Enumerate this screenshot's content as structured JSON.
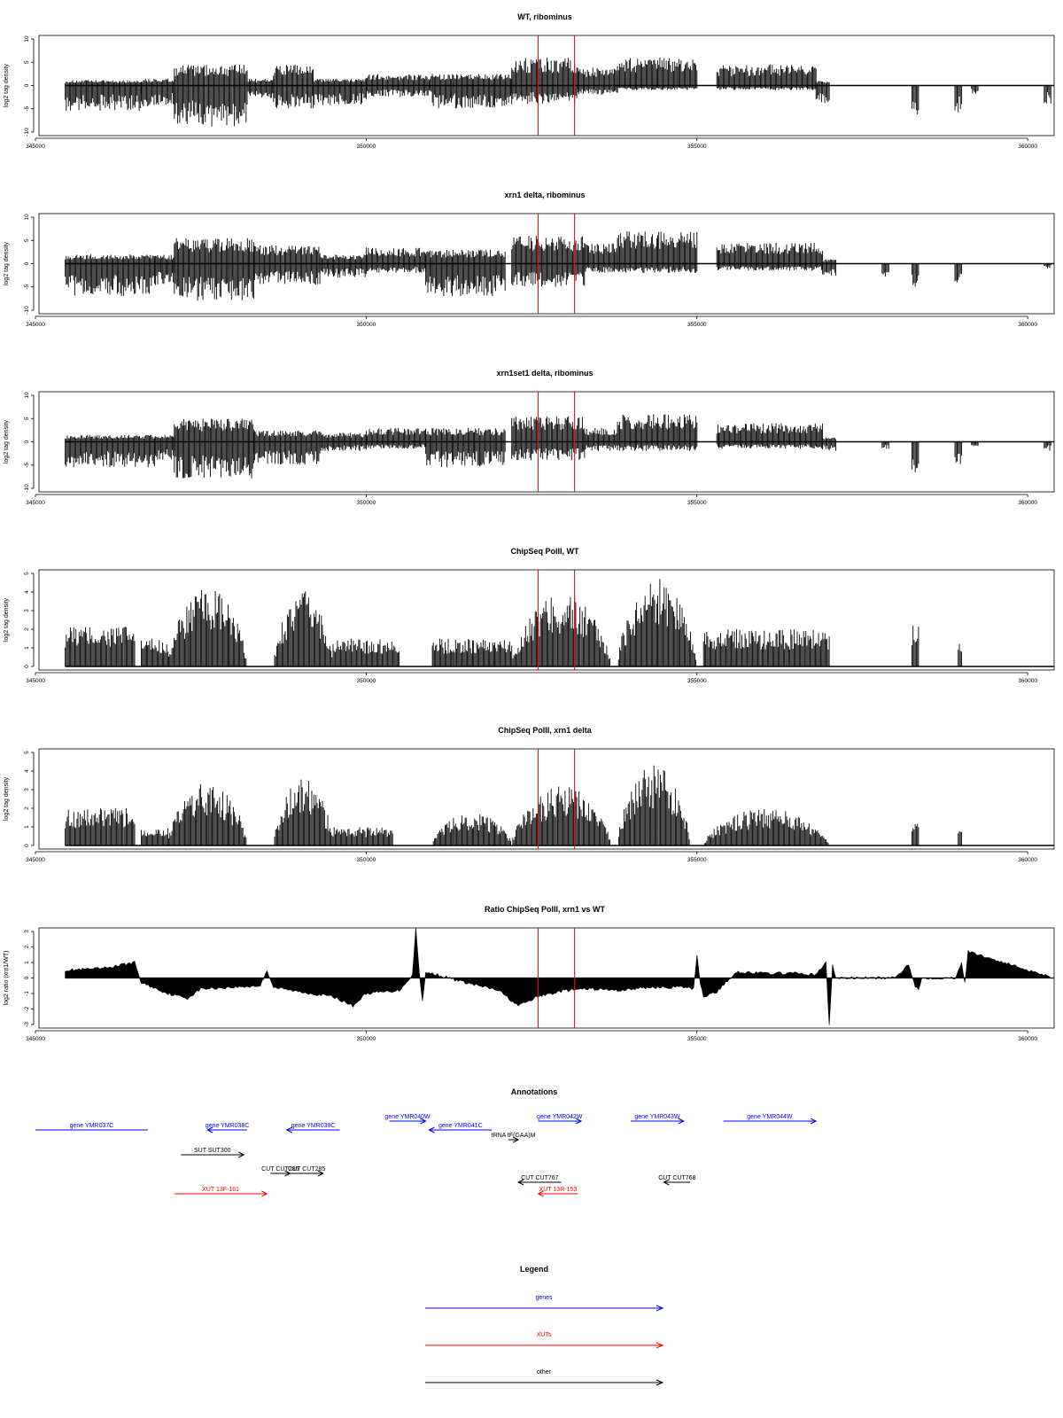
{
  "colors": {
    "bars": "#000000",
    "marker": "#ff0000",
    "gene": "#0000ff",
    "xut": "#ff0000",
    "other": "#000000"
  },
  "chart_data": [
    {
      "type": "bar",
      "title": "WT, ribominus",
      "ylabel": "log2 tag density",
      "ylim": [
        -10,
        10
      ],
      "yticks": [
        10,
        5,
        0,
        -5,
        -10
      ],
      "xlim": [
        345000,
        360400
      ],
      "xticks": [
        345000,
        350000,
        355000,
        360000
      ],
      "markers": [
        352600,
        353150
      ],
      "segments": [
        {
          "x": [
            345450,
            346600
          ],
          "pos": 1.2,
          "neg": -5.5
        },
        {
          "x": [
            346600,
            347100
          ],
          "pos": 1.5,
          "neg": -4.5
        },
        {
          "x": [
            347100,
            348200
          ],
          "pos": 4.5,
          "neg": -9
        },
        {
          "x": [
            348200,
            348600
          ],
          "pos": 1.5,
          "neg": -3
        },
        {
          "x": [
            348600,
            349200
          ],
          "pos": 4.5,
          "neg": -5
        },
        {
          "x": [
            349200,
            350000
          ],
          "pos": 1.5,
          "neg": -4.5
        },
        {
          "x": [
            350000,
            351000
          ],
          "pos": 2.5,
          "neg": -2.5
        },
        {
          "x": [
            351000,
            352200
          ],
          "pos": 2.5,
          "neg": -5
        },
        {
          "x": [
            352200,
            353200
          ],
          "pos": 6,
          "neg": -4
        },
        {
          "x": [
            353200,
            353800
          ],
          "pos": 4,
          "neg": -2
        },
        {
          "x": [
            353800,
            355000
          ],
          "pos": 6,
          "neg": -1
        },
        {
          "x": [
            355300,
            356800
          ],
          "pos": 4.5,
          "neg": -1
        },
        {
          "x": [
            356800,
            357000
          ],
          "pos": 1,
          "neg": -4
        },
        {
          "x": [
            358250,
            358350
          ],
          "pos": 0,
          "neg": -7
        },
        {
          "x": [
            358900,
            359000
          ],
          "pos": 0,
          "neg": -6
        },
        {
          "x": [
            359150,
            359250
          ],
          "pos": 0,
          "neg": -2
        },
        {
          "x": [
            360250,
            360350
          ],
          "pos": 0,
          "neg": -4
        }
      ]
    },
    {
      "type": "bar",
      "title": "xrn1 delta, ribominus",
      "ylabel": "log2 tag density",
      "ylim": [
        -10,
        10
      ],
      "yticks": [
        10,
        5,
        0,
        -5,
        -10
      ],
      "xlim": [
        345000,
        360400
      ],
      "xticks": [
        345000,
        350000,
        355000,
        360000
      ],
      "markers": [
        352600,
        353150
      ],
      "segments": [
        {
          "x": [
            345450,
            346800
          ],
          "pos": 2,
          "neg": -7
        },
        {
          "x": [
            346800,
            347100
          ],
          "pos": 2,
          "neg": -5
        },
        {
          "x": [
            347100,
            348300
          ],
          "pos": 5.5,
          "neg": -8
        },
        {
          "x": [
            348300,
            349300
          ],
          "pos": 4,
          "neg": -4.5
        },
        {
          "x": [
            349300,
            350000
          ],
          "pos": 2,
          "neg": -3
        },
        {
          "x": [
            350000,
            350900
          ],
          "pos": 3.5,
          "neg": -2
        },
        {
          "x": [
            350900,
            352100
          ],
          "pos": 3,
          "neg": -7
        },
        {
          "x": [
            352200,
            353300
          ],
          "pos": 6,
          "neg": -5
        },
        {
          "x": [
            353300,
            353800
          ],
          "pos": 4.5,
          "neg": -2
        },
        {
          "x": [
            353800,
            355000
          ],
          "pos": 7,
          "neg": -2
        },
        {
          "x": [
            355300,
            356900
          ],
          "pos": 4.5,
          "neg": -1.5
        },
        {
          "x": [
            356900,
            357100
          ],
          "pos": 1,
          "neg": -3
        },
        {
          "x": [
            357800,
            357900
          ],
          "pos": 0,
          "neg": -3
        },
        {
          "x": [
            358250,
            358350
          ],
          "pos": 0,
          "neg": -5
        },
        {
          "x": [
            358900,
            359000
          ],
          "pos": 0,
          "neg": -5
        },
        {
          "x": [
            360250,
            360350
          ],
          "pos": 0,
          "neg": -1
        }
      ]
    },
    {
      "type": "bar",
      "title": "xrn1set1 delta, ribominus",
      "ylabel": "log2 tag density",
      "ylim": [
        -10,
        10
      ],
      "yticks": [
        10,
        5,
        0,
        -5,
        -10
      ],
      "xlim": [
        345000,
        360400
      ],
      "xticks": [
        345000,
        350000,
        355000,
        360000
      ],
      "markers": [
        352600,
        353150
      ],
      "segments": [
        {
          "x": [
            345450,
            346800
          ],
          "pos": 1.5,
          "neg": -5.5
        },
        {
          "x": [
            346800,
            347100
          ],
          "pos": 1.5,
          "neg": -4
        },
        {
          "x": [
            347100,
            348300
          ],
          "pos": 5,
          "neg": -8
        },
        {
          "x": [
            348300,
            349300
          ],
          "pos": 2.5,
          "neg": -5
        },
        {
          "x": [
            349300,
            350000
          ],
          "pos": 2,
          "neg": -2
        },
        {
          "x": [
            350000,
            350900
          ],
          "pos": 3,
          "neg": -1.5
        },
        {
          "x": [
            350900,
            352100
          ],
          "pos": 3,
          "neg": -5.5
        },
        {
          "x": [
            352200,
            353300
          ],
          "pos": 5.5,
          "neg": -4
        },
        {
          "x": [
            353300,
            353800
          ],
          "pos": 3,
          "neg": -2
        },
        {
          "x": [
            353800,
            355000
          ],
          "pos": 6,
          "neg": -2
        },
        {
          "x": [
            355300,
            356900
          ],
          "pos": 4,
          "neg": -1.5
        },
        {
          "x": [
            356900,
            357100
          ],
          "pos": 1,
          "neg": -2
        },
        {
          "x": [
            357800,
            357900
          ],
          "pos": 0,
          "neg": -1.5
        },
        {
          "x": [
            358250,
            358350
          ],
          "pos": 0,
          "neg": -7
        },
        {
          "x": [
            358900,
            359000
          ],
          "pos": 0,
          "neg": -5
        },
        {
          "x": [
            359150,
            359250
          ],
          "pos": 0,
          "neg": -1
        },
        {
          "x": [
            360250,
            360350
          ],
          "pos": 0,
          "neg": -2
        }
      ]
    },
    {
      "type": "bar",
      "title": "ChipSeq PolII, WT",
      "ylabel": "log2 tag density",
      "ylim": [
        0,
        5
      ],
      "yticks": [
        5,
        4,
        3,
        2,
        1,
        0
      ],
      "xlim": [
        345000,
        360400
      ],
      "xticks": [
        345000,
        350000,
        355000,
        360000
      ],
      "markers": [
        352600,
        353150
      ],
      "segments": [
        {
          "x": [
            345450,
            346500
          ],
          "pos": 2.2
        },
        {
          "x": [
            346600,
            347000
          ],
          "pos": 1.5
        },
        {
          "x": [
            347000,
            348200
          ],
          "pos": 4.2,
          "shape": "hump"
        },
        {
          "x": [
            348600,
            349500
          ],
          "pos": 4.1,
          "shape": "hump"
        },
        {
          "x": [
            349500,
            350500
          ],
          "pos": 1.5
        },
        {
          "x": [
            351000,
            352200
          ],
          "pos": 1.5
        },
        {
          "x": [
            352200,
            353700
          ],
          "pos": 3.9,
          "shape": "hump"
        },
        {
          "x": [
            353800,
            355000
          ],
          "pos": 4.8,
          "shape": "hump"
        },
        {
          "x": [
            355100,
            357000
          ],
          "pos": 2.0
        },
        {
          "x": [
            358250,
            358350
          ],
          "pos": 2.5
        },
        {
          "x": [
            358950,
            359000
          ],
          "pos": 1.5
        }
      ]
    },
    {
      "type": "bar",
      "title": "ChipSeq PolII, xrn1 delta",
      "ylabel": "log2 tag density",
      "ylim": [
        0,
        5
      ],
      "yticks": [
        5,
        4,
        3,
        2,
        1,
        0
      ],
      "xlim": [
        345000,
        360400
      ],
      "xticks": [
        345000,
        350000,
        355000,
        360000
      ],
      "markers": [
        352600,
        353150
      ],
      "segments": [
        {
          "x": [
            345450,
            346500
          ],
          "pos": 2.0
        },
        {
          "x": [
            346600,
            347000
          ],
          "pos": 1.0
        },
        {
          "x": [
            347000,
            348200
          ],
          "pos": 3.4,
          "shape": "hump"
        },
        {
          "x": [
            348600,
            349500
          ],
          "pos": 3.6,
          "shape": "hump"
        },
        {
          "x": [
            349500,
            350400
          ],
          "pos": 1.0
        },
        {
          "x": [
            351000,
            352200
          ],
          "pos": 1.8,
          "shape": "hump"
        },
        {
          "x": [
            352200,
            353700
          ],
          "pos": 3.2,
          "shape": "hump"
        },
        {
          "x": [
            353800,
            354900
          ],
          "pos": 4.3,
          "shape": "hump"
        },
        {
          "x": [
            355100,
            357000
          ],
          "pos": 2.0,
          "shape": "hump"
        },
        {
          "x": [
            358250,
            358350
          ],
          "pos": 1.5
        },
        {
          "x": [
            358950,
            359000
          ],
          "pos": 1.3
        }
      ]
    },
    {
      "type": "area",
      "title": "Ratio ChipSeq PolII, xrn1 vs WT",
      "ylabel": "log2 ratio (xrn1/WT)",
      "ylim": [
        -3,
        3
      ],
      "yticks": [
        3,
        2,
        1,
        0,
        -1,
        -2,
        -3
      ],
      "xlim": [
        345000,
        360400
      ],
      "xticks": [
        345000,
        350000,
        355000,
        360000
      ],
      "markers": [
        352600,
        353150
      ],
      "x": [
        345450,
        346000,
        346500,
        346600,
        347000,
        347300,
        347500,
        348000,
        348400,
        348500,
        348600,
        349000,
        349500,
        349800,
        350000,
        350500,
        350700,
        350750,
        350800,
        350850,
        350900,
        351000,
        351500,
        352000,
        352300,
        352600,
        353000,
        353400,
        353800,
        354300,
        354800,
        354950,
        355000,
        355050,
        355100,
        355300,
        355600,
        356000,
        356500,
        356800,
        356950,
        357000,
        357050,
        357100,
        358000,
        358200,
        358300,
        358350,
        358400,
        358900,
        359000,
        359050,
        359100,
        360400
      ],
      "y": [
        0.5,
        0.6,
        1.0,
        -0.3,
        -1.0,
        -1.3,
        -0.7,
        -0.6,
        -0.5,
        0.5,
        -0.6,
        -0.9,
        -1.2,
        -1.8,
        -1.0,
        -0.8,
        0.2,
        3.2,
        0.5,
        -1.5,
        0.3,
        0.3,
        -0.3,
        -0.8,
        -1.8,
        -1.2,
        -0.8,
        -0.7,
        -0.8,
        -0.6,
        -0.6,
        -0.7,
        1.5,
        -0.3,
        -1.2,
        -0.9,
        0.4,
        0.3,
        0.3,
        0.2,
        1.0,
        -3.0,
        0.8,
        0,
        0,
        0.9,
        -0.5,
        -0.8,
        0,
        0,
        1.0,
        -0.3,
        1.7,
        0
      ]
    }
  ],
  "annotations": {
    "title": "Annotations",
    "items": [
      {
        "label": "gene YMR037C",
        "start": 345000,
        "end": 346700,
        "dir": "none",
        "color": "gene",
        "row": 0
      },
      {
        "label": "gene YMR038C",
        "start": 347600,
        "end": 348200,
        "dir": "left",
        "color": "gene",
        "row": 0
      },
      {
        "label": "gene YMR039C",
        "start": 348800,
        "end": 349600,
        "dir": "left",
        "color": "gene",
        "row": 0
      },
      {
        "label": "gene YMR040W",
        "start": 350350,
        "end": 350900,
        "dir": "right",
        "color": "gene",
        "row": -1
      },
      {
        "label": "gene YMR041C",
        "start": 350950,
        "end": 351900,
        "dir": "left",
        "color": "gene",
        "row": 0
      },
      {
        "label": "gene YMR042W",
        "start": 352600,
        "end": 353250,
        "dir": "right",
        "color": "gene",
        "row": -1
      },
      {
        "label": "gene YMR043W",
        "start": 354000,
        "end": 354800,
        "dir": "right",
        "color": "gene",
        "row": -1
      },
      {
        "label": "gene YMR044W",
        "start": 355400,
        "end": 356800,
        "dir": "right",
        "color": "gene",
        "row": -1
      },
      {
        "label": "tRNA tF(GAA)M",
        "start": 352150,
        "end": 352300,
        "dir": "right",
        "color": "other",
        "row": 1
      },
      {
        "label": "SUT SUT300",
        "start": 347200,
        "end": 348150,
        "dir": "right",
        "color": "other",
        "row": 2
      },
      {
        "label": "CUT CUT286",
        "start": 348550,
        "end": 348850,
        "dir": "right",
        "color": "other",
        "row": 3
      },
      {
        "label": "CUT CUT285",
        "start": 348850,
        "end": 349350,
        "dir": "right",
        "color": "other",
        "row": 3
      },
      {
        "label": "CUT CUT767",
        "start": 352300,
        "end": 352950,
        "dir": "left",
        "color": "other",
        "row": 4
      },
      {
        "label": "CUT CUT768",
        "start": 354500,
        "end": 354900,
        "dir": "left",
        "color": "other",
        "row": 4
      },
      {
        "label": "XUT 13F-161",
        "start": 347100,
        "end": 348500,
        "dir": "right",
        "color": "xut",
        "row": 5
      },
      {
        "label": "XUT 13R-153",
        "start": 352600,
        "end": 353200,
        "dir": "left",
        "color": "xut",
        "row": 5
      }
    ]
  },
  "legend": {
    "title": "Legend",
    "items": [
      {
        "label": "genes",
        "color": "gene"
      },
      {
        "label": "XUTs",
        "color": "xut"
      },
      {
        "label": "other",
        "color": "other"
      }
    ]
  }
}
